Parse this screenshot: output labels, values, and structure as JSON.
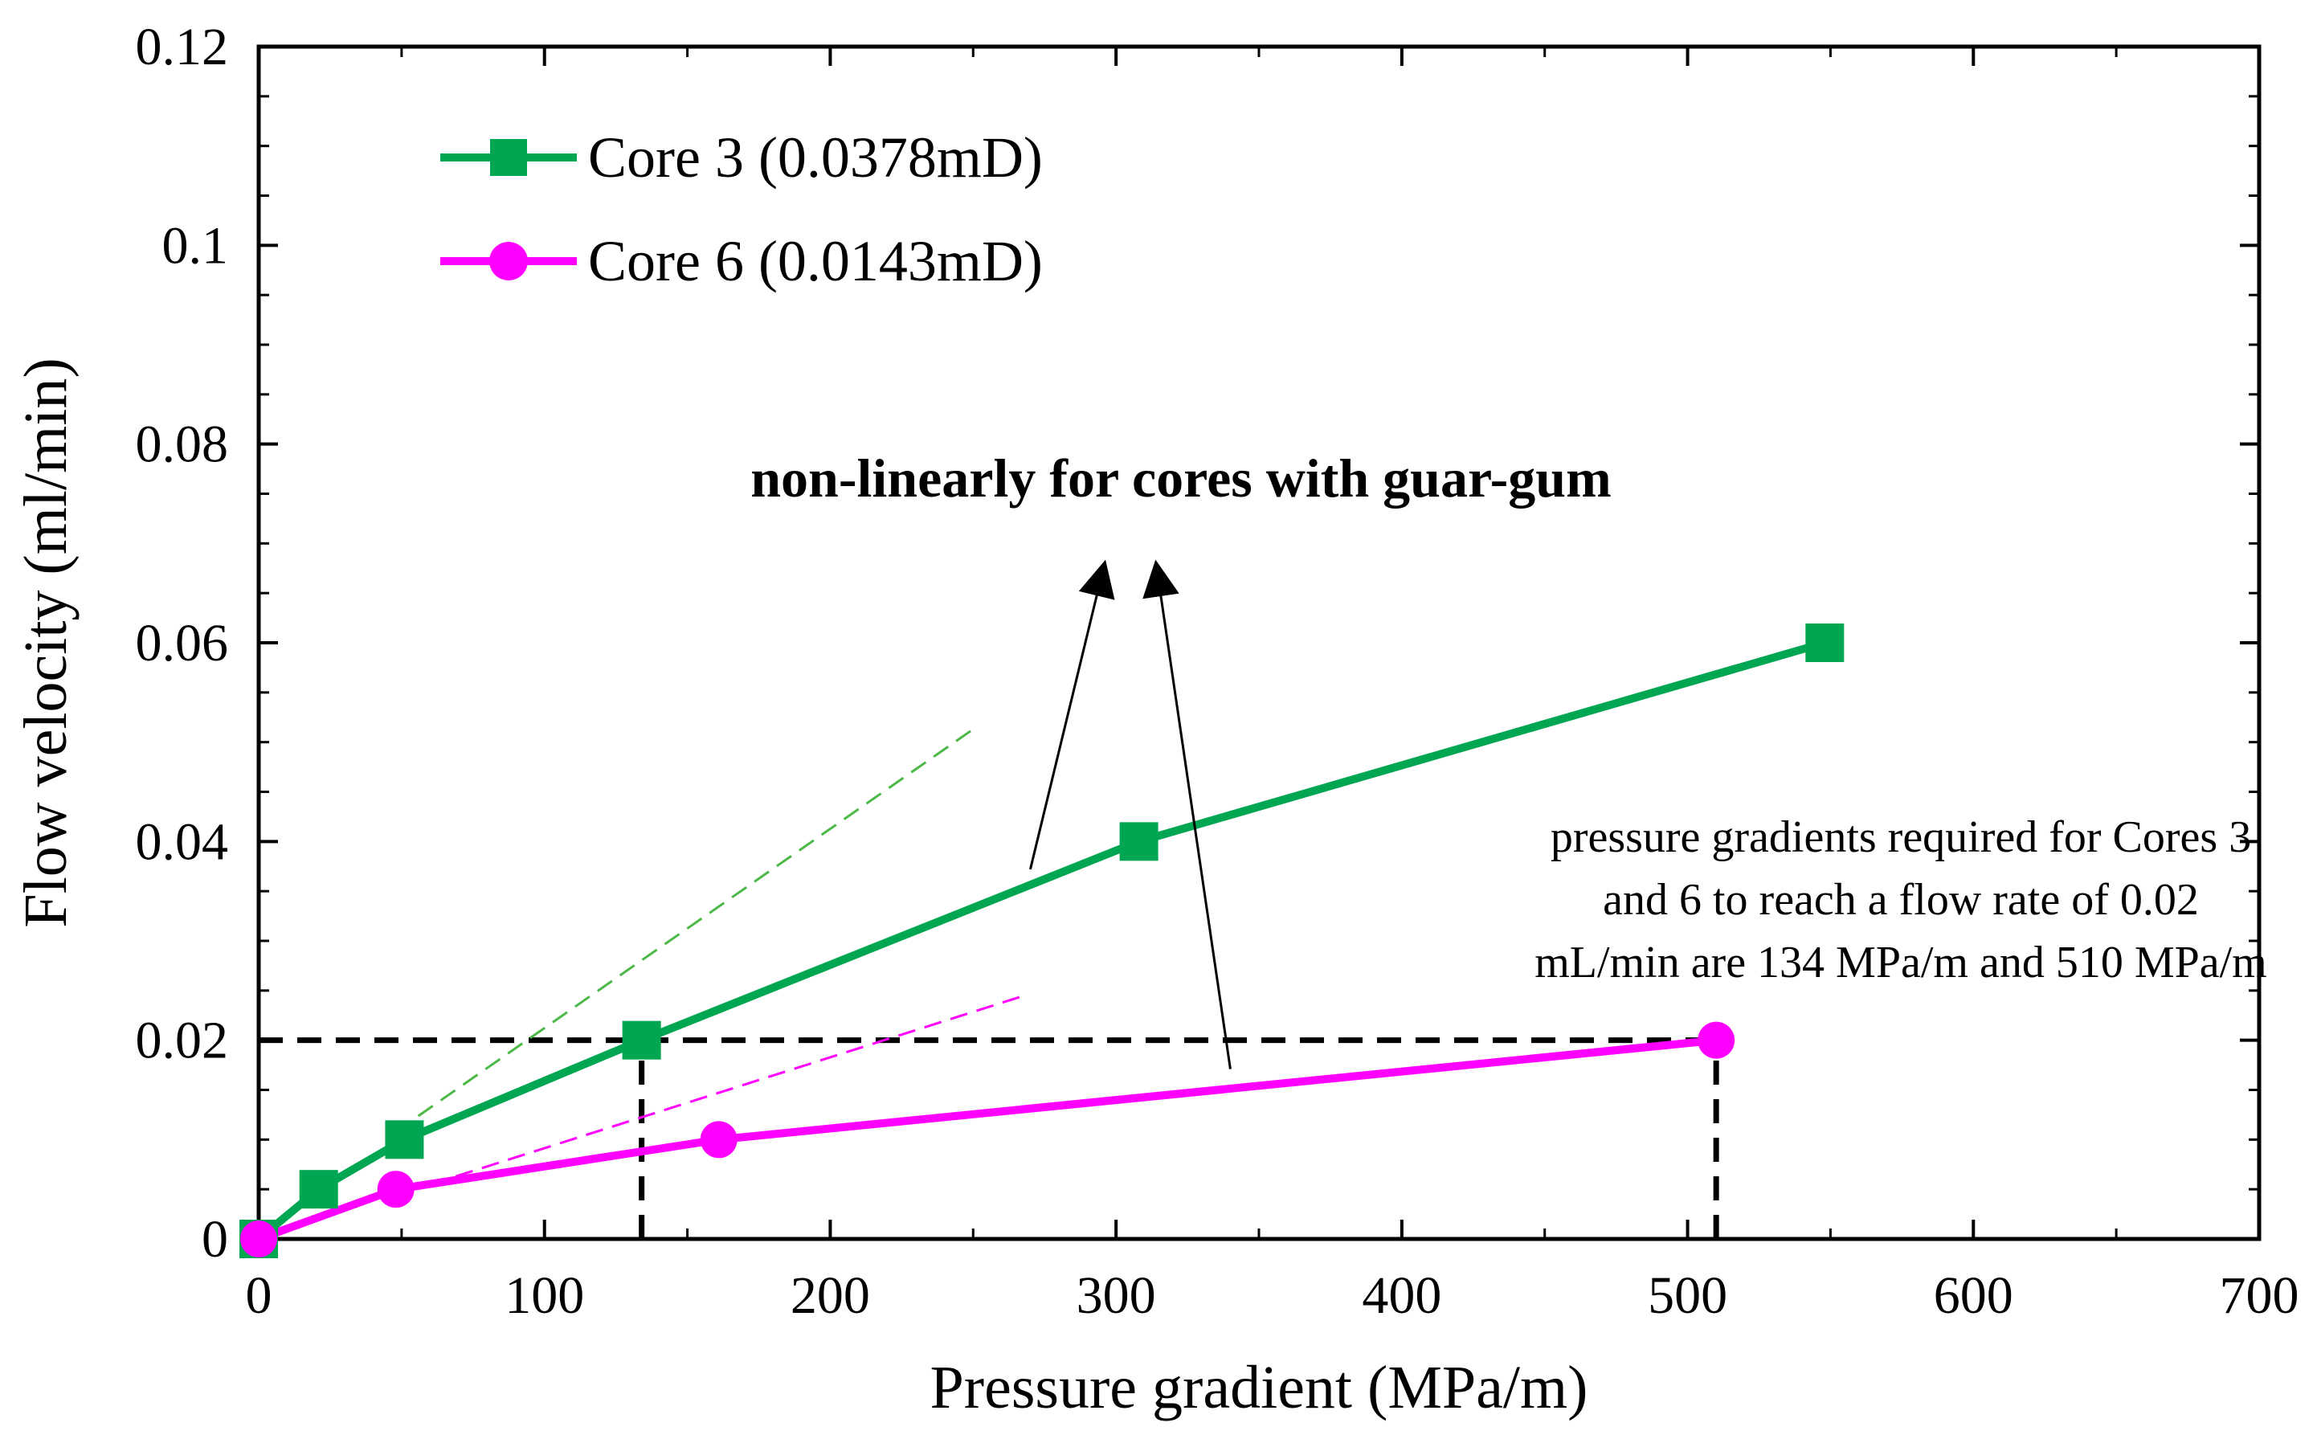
{
  "chart_data": {
    "type": "line",
    "title": "",
    "xlabel": "Pressure gradient (MPa/m)",
    "ylabel": "Flow velocity (ml/min)",
    "xlim": [
      0,
      700
    ],
    "ylim": [
      0,
      0.12
    ],
    "grid": false,
    "legend_position": "top-left",
    "x_ticks": [
      {
        "value": 0,
        "label": "0"
      },
      {
        "value": 100,
        "label": "100"
      },
      {
        "value": 200,
        "label": "200"
      },
      {
        "value": 300,
        "label": "300"
      },
      {
        "value": 400,
        "label": "400"
      },
      {
        "value": 500,
        "label": "500"
      },
      {
        "value": 600,
        "label": "600"
      },
      {
        "value": 700,
        "label": "700"
      }
    ],
    "y_ticks": [
      {
        "value": 0,
        "label": "0"
      },
      {
        "value": 0.02,
        "label": "0.02"
      },
      {
        "value": 0.04,
        "label": "0.04"
      },
      {
        "value": 0.06,
        "label": "0.06"
      },
      {
        "value": 0.08,
        "label": "0.08"
      },
      {
        "value": 0.1,
        "label": "0.1"
      },
      {
        "value": 0.12,
        "label": "0.12"
      }
    ],
    "series": [
      {
        "name": "Core 3 (0.0378mD)",
        "color": "#00a651",
        "marker": "square",
        "x": [
          0,
          21,
          51,
          134,
          308,
          548
        ],
        "y": [
          0,
          0.005,
          0.01,
          0.02,
          0.04,
          0.06
        ]
      },
      {
        "name": "Core 6 (0.0143mD)",
        "color": "#ff00ff",
        "marker": "circle",
        "x": [
          0,
          48,
          161,
          510
        ],
        "y": [
          0,
          0.005,
          0.01,
          0.02
        ]
      }
    ],
    "tangent_lines": [
      {
        "series": "Core 3 (0.0378mD)",
        "color": "#4cb848",
        "x": [
          48,
          251
        ],
        "y": [
          0.0108,
          0.0515
        ]
      },
      {
        "series": "Core 6 (0.0143mD)",
        "color": "#ff00ff",
        "x": [
          69,
          268
        ],
        "y": [
          0.0063,
          0.0245
        ]
      }
    ],
    "reference_lines": {
      "color": "#000000",
      "horizontal": {
        "y": 0.02,
        "x": [
          0,
          510
        ]
      },
      "vertical": [
        {
          "x": 134,
          "y": [
            0,
            0.02
          ]
        },
        {
          "x": 510,
          "y": [
            0,
            0.02
          ]
        }
      ]
    },
    "annotations": [
      {
        "id": "headline",
        "text": "non-linearly for cores with guar-gum",
        "arrows": [
          {
            "from": [
              270,
              0.0372
            ],
            "to": [
              296,
              0.068
            ]
          },
          {
            "from": [
              340,
              0.0171
            ],
            "to": [
              314,
              0.068
            ]
          }
        ]
      },
      {
        "id": "note",
        "lines": [
          "pressure gradients required for Cores 3",
          "and 6 to reach a flow rate of 0.02",
          "mL/min are 134 MPa/m and 510 MPa/m"
        ]
      }
    ]
  }
}
